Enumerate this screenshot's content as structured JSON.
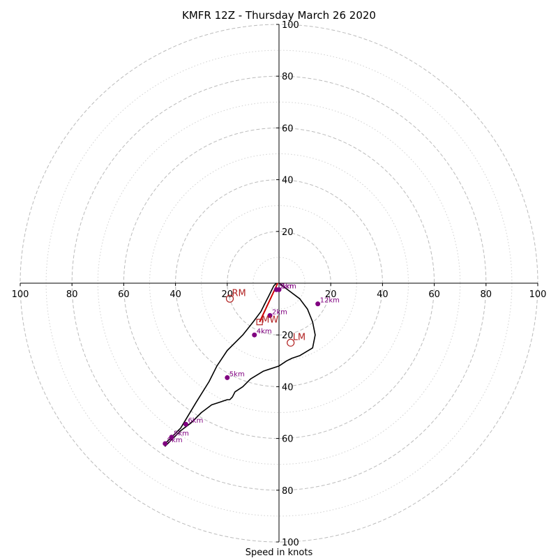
{
  "chart_data": {
    "type": "hodograph",
    "title": "KMFR 12Z - Thursday March 26 2020",
    "xlabel": "Speed in knots",
    "range": [
      -100,
      100
    ],
    "tick_labels": [
      "100",
      "80",
      "60",
      "40",
      "20",
      "20",
      "40",
      "60",
      "80",
      "100"
    ],
    "y_tick_labels_top": [
      "100",
      "80",
      "60",
      "40",
      "20"
    ],
    "y_tick_labels_bottom": [
      "20",
      "40",
      "60",
      "80",
      "100"
    ],
    "ring_major": [
      20,
      40,
      60,
      80,
      100
    ],
    "ring_minor": [
      10,
      30,
      50,
      70,
      90
    ],
    "grid": "dashed and dotted gray rings",
    "colors": {
      "profile": "#000000",
      "markers": "#800080",
      "motion": "#b22222",
      "grid": "#bbbbbb",
      "mean_wind_line": "#cc0000"
    },
    "profile": {
      "u": [
        0,
        4,
        8,
        11,
        13,
        14,
        13,
        8,
        5,
        3,
        0,
        -6,
        -11,
        -14,
        -17,
        -18,
        -19,
        -20,
        -23,
        -26,
        -30,
        -34,
        -38,
        -40,
        -42,
        -44,
        -44,
        -42,
        -38,
        -32,
        -27,
        -24,
        -20,
        -14,
        -10,
        -7,
        -6,
        -5,
        -4,
        -3,
        -2,
        -1
      ],
      "v": [
        0,
        -3,
        -6,
        -10,
        -15,
        -20,
        -25,
        -28,
        -29,
        -30,
        -32,
        -34,
        -37,
        -40,
        -42,
        -44,
        -45,
        -45,
        -46,
        -47,
        -50,
        -54,
        -57,
        -59,
        -61,
        -63,
        -62,
        -60,
        -56,
        -46,
        -38,
        -32,
        -26,
        -20,
        -15,
        -11,
        -9,
        -7,
        -5,
        -3,
        -1,
        0
      ]
    },
    "height_markers": [
      {
        "label": "12km",
        "u": 15,
        "v": -8
      },
      {
        "label": "1km",
        "u": 0,
        "v": -2.5
      },
      {
        "label": "3km",
        "u": -1,
        "v": -2.5
      },
      {
        "label": "2km",
        "u": -3.5,
        "v": -12.5
      },
      {
        "label": "4km",
        "u": -9.5,
        "v": -20
      },
      {
        "label": "5km",
        "u": -20,
        "v": -36.5
      },
      {
        "label": "6km",
        "u": -36,
        "v": -54.5
      },
      {
        "label": "8km",
        "u": -41.5,
        "v": -59.5
      },
      {
        "label": "9km",
        "u": -44,
        "v": -62
      }
    ],
    "storm_motion": [
      {
        "label": "RM",
        "u": -19,
        "v": -6
      },
      {
        "label": "LM",
        "u": 4.5,
        "v": -23
      }
    ],
    "mean_wind": {
      "label": "MW",
      "u": -7.5,
      "v": -15
    },
    "mean_wind_line": {
      "u": [
        -0.5,
        -7.5
      ],
      "v": [
        0,
        -15
      ]
    }
  }
}
